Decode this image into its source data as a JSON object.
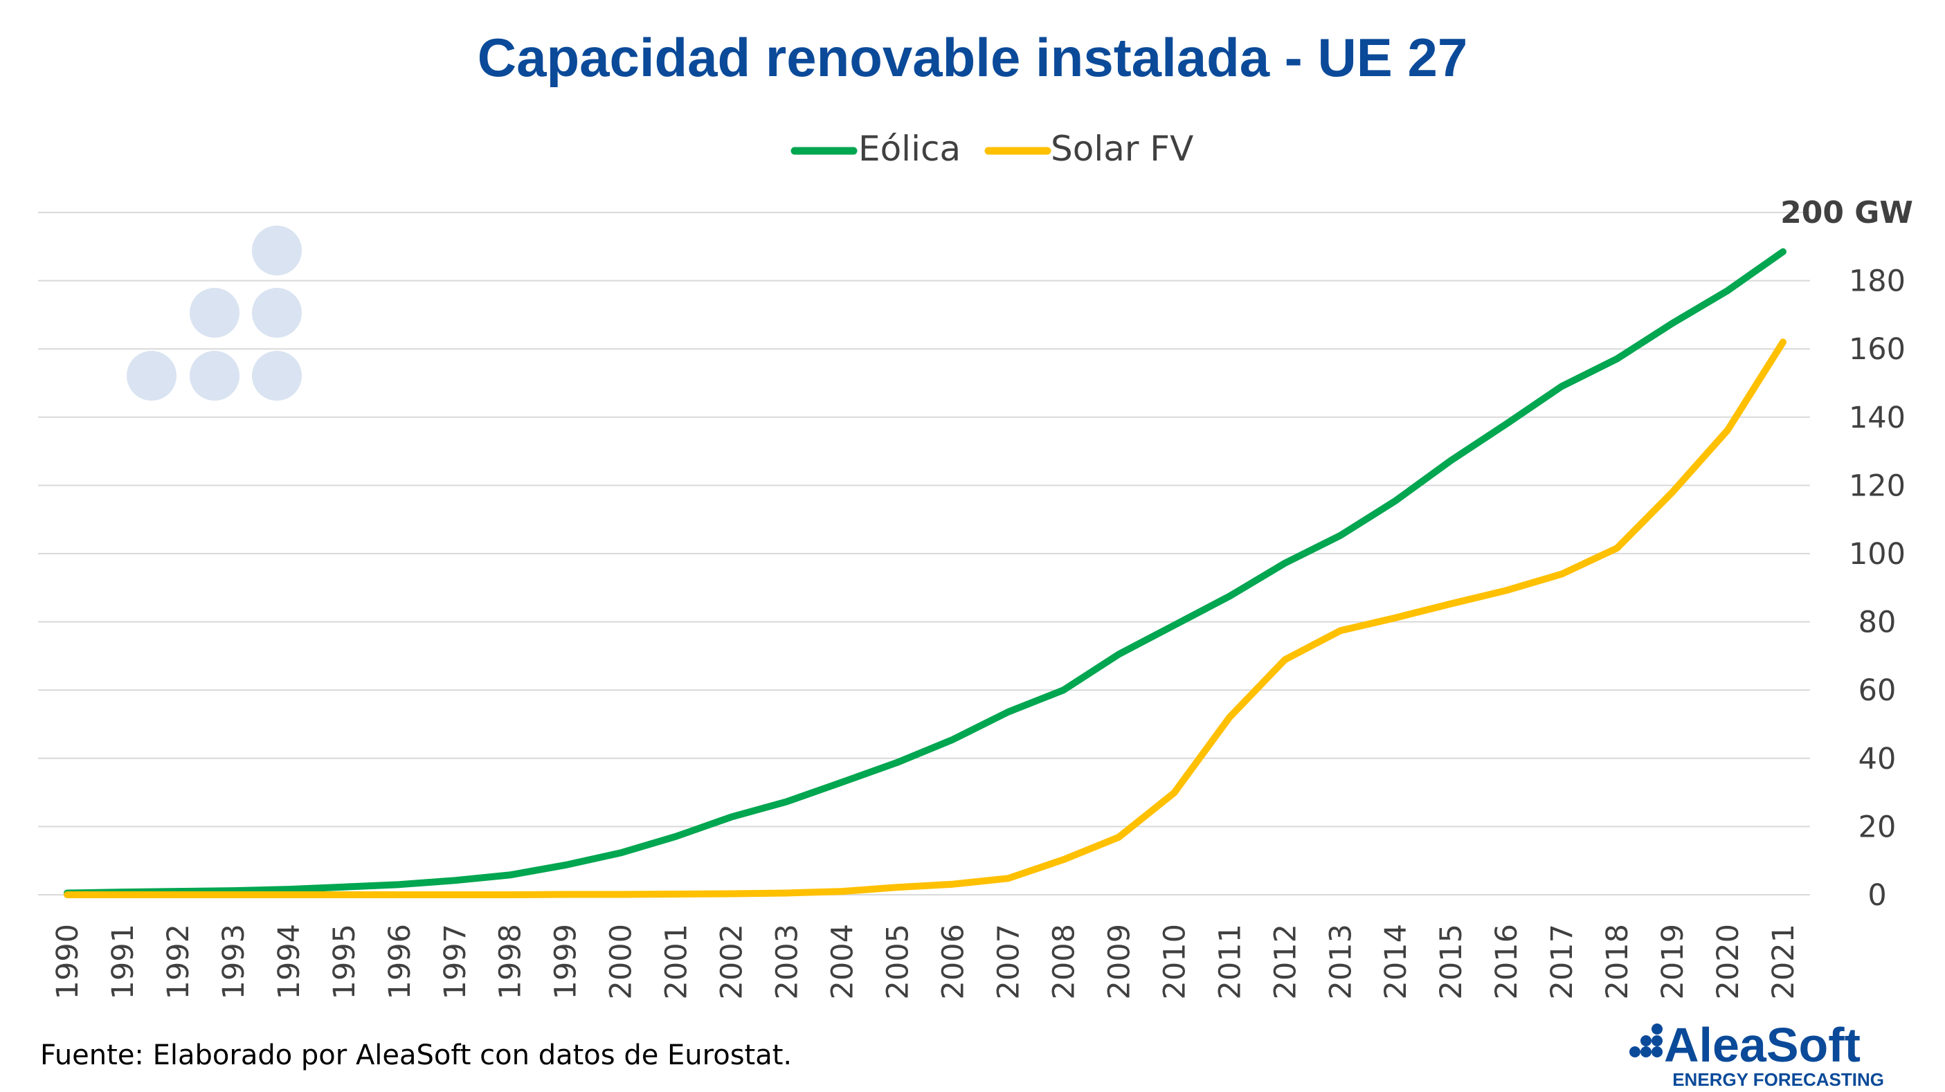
{
  "chart_data": {
    "type": "line",
    "title": "Capacidad renovable instalada - UE 27",
    "x": [
      "1990",
      "1991",
      "1992",
      "1993",
      "1994",
      "1995",
      "1996",
      "1997",
      "1998",
      "1999",
      "2000",
      "2001",
      "2002",
      "2003",
      "2004",
      "2005",
      "2006",
      "2007",
      "2008",
      "2009",
      "2010",
      "2011",
      "2012",
      "2013",
      "2014",
      "2015",
      "2016",
      "2017",
      "2018",
      "2019",
      "2020",
      "2021"
    ],
    "series": [
      {
        "name": "Eólica",
        "color": "#00a650",
        "values": [
          0.5,
          0.8,
          1.0,
          1.2,
          1.6,
          2.3,
          3.0,
          4.2,
          5.8,
          8.7,
          12.3,
          17.1,
          22.8,
          27.3,
          33.0,
          38.8,
          45.5,
          53.6,
          60.0,
          70.5,
          79.0,
          87.5,
          97.2,
          105.3,
          115.5,
          127.3,
          138.0,
          149.0,
          157.1,
          167.5,
          177.1,
          188.5
        ]
      },
      {
        "name": "Solar FV",
        "color": "#ffc000",
        "values": [
          0,
          0,
          0,
          0,
          0,
          0,
          0,
          0,
          0,
          0.1,
          0.1,
          0.2,
          0.3,
          0.5,
          1.0,
          2.2,
          3.1,
          4.8,
          10.3,
          16.9,
          29.9,
          52.0,
          68.9,
          77.4,
          81.2,
          85.3,
          89.2,
          94.0,
          101.6,
          118.0,
          136.2,
          162.0
        ]
      }
    ],
    "ylim": [
      0,
      200
    ],
    "yticks": [
      "0",
      "20",
      "40",
      "60",
      "80",
      "100",
      "120",
      "140",
      "160",
      "180"
    ],
    "ytop_label": "200 GW",
    "legend_position": "top-center",
    "grid": true
  },
  "source": "Fuente: Elaborado por AleaSoft con datos de Eurostat.",
  "brand": {
    "name": "AleaSoft",
    "tagline": "ENERGY FORECASTING",
    "color": "#0b4a99"
  }
}
